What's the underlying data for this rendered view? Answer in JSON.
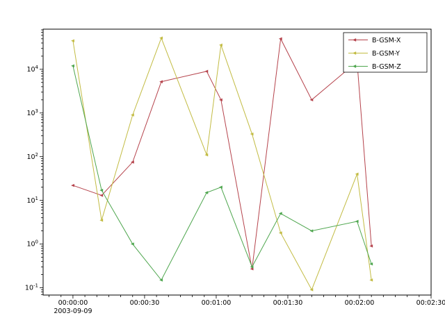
{
  "figure": {
    "background": "#ffffff",
    "x_axis": {
      "tick_labels": [
        "00:00:00",
        "00:00:30",
        "00:01:00",
        "00:01:30",
        "00:02:00",
        "00:02:30"
      ],
      "date_label": "2003-09-09"
    },
    "y_axis": {
      "tick_labels": [
        "10⁻¹",
        "10⁰",
        "10¹",
        "10²",
        "10³",
        "10⁴"
      ]
    },
    "legend": {
      "entries": [
        "B-GSM-X",
        "B-GSM-Y",
        "B-GSM-Z"
      ],
      "position": "upper right"
    }
  },
  "chart_data": {
    "type": "line",
    "title": "",
    "xlabel": "",
    "ylabel": "",
    "yscale": "log",
    "grid": false,
    "start_date": "2003-09-09",
    "x_unit": "seconds since 00:00:00",
    "x": [
      0,
      12,
      25,
      37,
      56,
      62,
      75,
      87,
      100,
      119,
      125
    ],
    "series": [
      {
        "name": "B-GSM-X",
        "color": "#b5424b",
        "values": [
          22,
          13,
          75,
          5200,
          9000,
          2000,
          0.27,
          50000,
          2000,
          15000,
          0.9
        ]
      },
      {
        "name": "B-GSM-Y",
        "color": "#c2bb42",
        "values": [
          45000,
          3.5,
          900,
          52000,
          110,
          36000,
          330,
          1.8,
          0.09,
          40,
          0.15
        ]
      },
      {
        "name": "B-GSM-Z",
        "color": "#4ea64e",
        "values": [
          12000,
          17,
          1.0,
          0.15,
          15,
          20,
          0.3,
          5,
          2,
          3.3,
          0.35
        ]
      }
    ],
    "xlim_seconds": [
      -12.5,
      150
    ],
    "ylim": [
      0.068,
      83000
    ],
    "x_major_ticks_seconds": [
      0,
      30,
      60,
      90,
      120,
      150
    ],
    "x_minor_tick_step_seconds": 5,
    "y_tick_exponents": [
      -1,
      0,
      1,
      2,
      3,
      4
    ],
    "legend_position": "upper right"
  }
}
